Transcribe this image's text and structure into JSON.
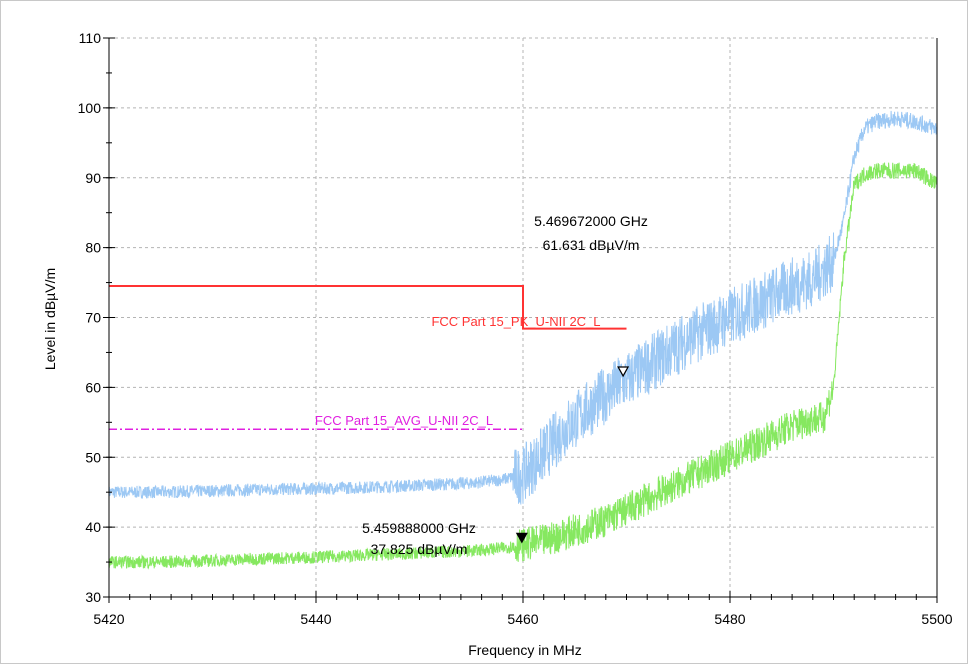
{
  "chart_data": {
    "type": "line",
    "xlabel": "Frequency in MHz",
    "ylabel": "Level in dBµV/m",
    "xlim": [
      5420,
      5500
    ],
    "ylim": [
      30,
      110
    ],
    "xticks": [
      5420,
      5440,
      5460,
      5480,
      5500
    ],
    "yticks": [
      30,
      40,
      50,
      60,
      70,
      80,
      90,
      100,
      110
    ],
    "grid": true,
    "series": [
      {
        "color": "#9cc8f4",
        "x": [
          5420,
          5425,
          5430,
          5435,
          5440,
          5445,
          5450,
          5455,
          5458,
          5460,
          5462,
          5464,
          5466,
          5468,
          5470,
          5472,
          5474,
          5476,
          5478,
          5480,
          5482,
          5484,
          5486,
          5488,
          5490,
          5491,
          5492,
          5493,
          5494,
          5496,
          5498,
          5500
        ],
        "y": [
          45,
          45,
          45.2,
          45.4,
          45.5,
          45.7,
          46,
          46.3,
          46.8,
          47.5,
          50.5,
          54,
          56.5,
          59,
          61,
          63,
          65,
          67,
          68.5,
          70,
          71.5,
          73,
          74.5,
          75.5,
          78,
          84,
          93,
          97,
          98,
          98.5,
          98,
          97
        ]
      },
      {
        "color": "#86e860",
        "x": [
          5420,
          5425,
          5430,
          5435,
          5440,
          5445,
          5450,
          5455,
          5458,
          5460,
          5462,
          5464,
          5466,
          5468,
          5470,
          5472,
          5474,
          5476,
          5478,
          5480,
          5482,
          5484,
          5486,
          5488,
          5489,
          5490,
          5491,
          5492,
          5493,
          5494,
          5496,
          5498,
          5500
        ],
        "y": [
          35,
          35,
          35.2,
          35.5,
          35.7,
          36,
          36.3,
          36.6,
          37,
          37.5,
          38,
          39,
          40,
          41,
          42.5,
          44,
          45.5,
          47,
          48.5,
          50,
          51.5,
          53,
          54.5,
          55.5,
          55.5,
          60,
          78,
          89,
          90.5,
          91,
          91,
          91,
          89
        ]
      }
    ],
    "limit_lines": [
      {
        "name": "FCC Part 15_PK_U-NII 2C_L",
        "color": "#ff3333",
        "style": "solid",
        "x": [
          5420,
          5460,
          5460,
          5470
        ],
        "y": [
          74.5,
          74.5,
          68.4,
          68.4
        ]
      },
      {
        "name": "FCC Part 15_AVG_U-NII 2C_L",
        "color": "#e020e0",
        "style": "dashdot",
        "x": [
          5420,
          5460
        ],
        "y": [
          54,
          54
        ]
      }
    ],
    "markers": [
      {
        "symbol": "open-triangle",
        "x": 5469.672,
        "y": 61.631,
        "line1": "5.469672000 GHz",
        "line2": "61.631 dBµV/m"
      },
      {
        "symbol": "filled-triangle",
        "x": 5459.888,
        "y": 37.825,
        "line1": "5.459888000 GHz",
        "line2": "37.825 dBµV/m"
      }
    ]
  }
}
